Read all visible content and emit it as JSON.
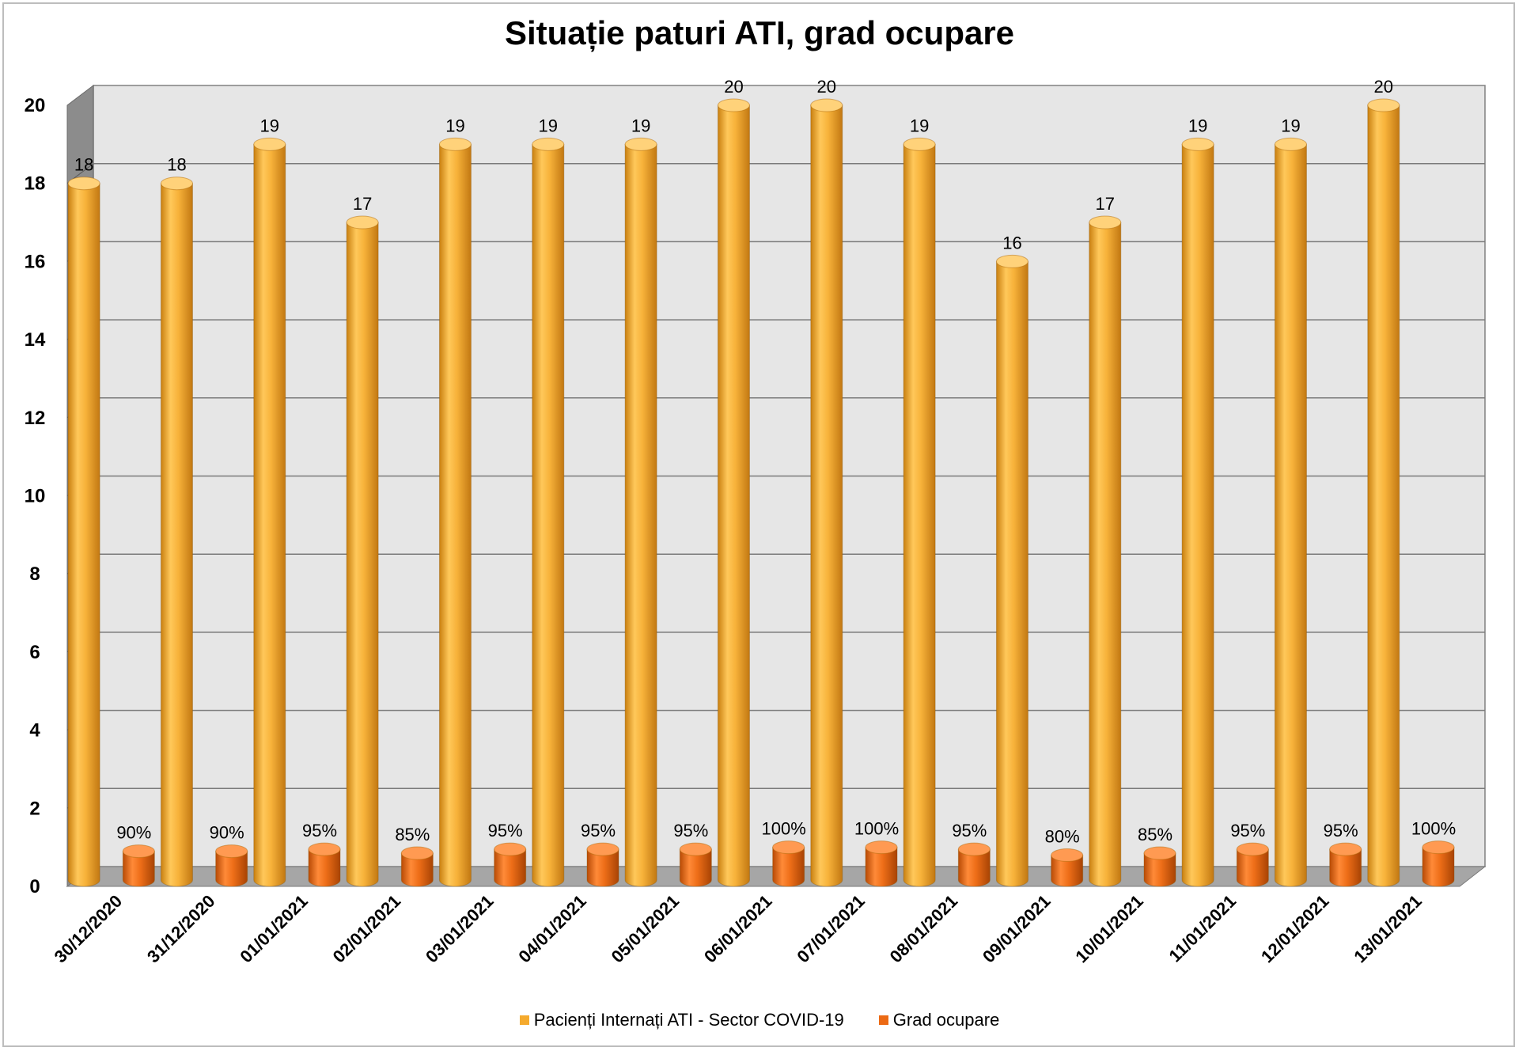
{
  "chart_data": {
    "type": "bar",
    "title": "Situație paturi ATI, grad ocupare",
    "categories": [
      "30/12/2020",
      "31/12/2020",
      "01/01/2021",
      "02/01/2021",
      "03/01/2021",
      "04/01/2021",
      "05/01/2021",
      "06/01/2021",
      "07/01/2021",
      "08/01/2021",
      "09/01/2021",
      "10/01/2021",
      "11/01/2021",
      "12/01/2021",
      "13/01/2021"
    ],
    "series": [
      {
        "name": "Pacienți Internați ATI - Sector COVID-19",
        "color": "#F5AA2D",
        "values": [
          18,
          18,
          19,
          17,
          19,
          19,
          19,
          20,
          20,
          19,
          16,
          17,
          19,
          19,
          20
        ],
        "labels": [
          "18",
          "18",
          "19",
          "17",
          "19",
          "19",
          "19",
          "20",
          "20",
          "19",
          "16",
          "17",
          "19",
          "19",
          "20"
        ]
      },
      {
        "name": "Grad ocupare",
        "color": "#EC6A14",
        "values": [
          0.9,
          0.9,
          0.95,
          0.85,
          0.95,
          0.95,
          0.95,
          1.0,
          1.0,
          0.95,
          0.8,
          0.85,
          0.95,
          0.95,
          1.0
        ],
        "labels": [
          "90%",
          "90%",
          "95%",
          "85%",
          "95%",
          "95%",
          "95%",
          "100%",
          "100%",
          "95%",
          "80%",
          "85%",
          "95%",
          "95%",
          "100%"
        ]
      }
    ],
    "y_ticks": [
      "0",
      "2",
      "4",
      "6",
      "8",
      "10",
      "12",
      "14",
      "16",
      "18",
      "20"
    ],
    "ylim": [
      0,
      20
    ],
    "grid": true,
    "legend_position": "bottom",
    "xlabel": "",
    "ylabel": ""
  }
}
